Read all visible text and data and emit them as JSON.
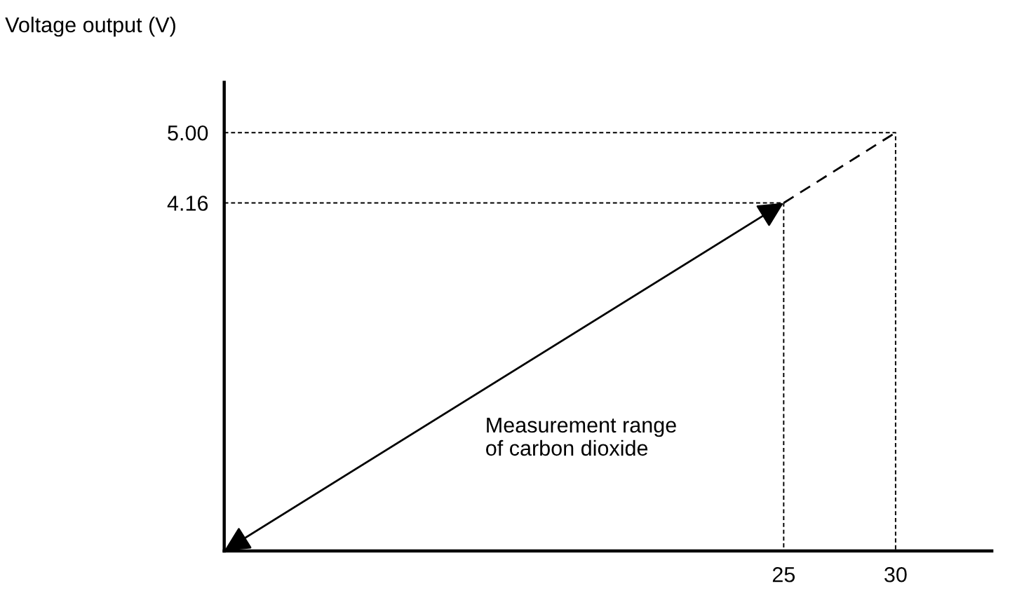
{
  "chart_data": {
    "type": "line",
    "ylabel": "Voltage output (V)",
    "xlim": [
      0,
      34.3
    ],
    "ylim": [
      0,
      5.6
    ],
    "xticks": [
      25,
      30
    ],
    "yticks": [
      {
        "value": 4.16,
        "label": "4.16"
      },
      {
        "value": 5,
        "label": "5.00"
      }
    ],
    "grid": false,
    "legend": false,
    "marker": "none",
    "series": [
      {
        "color": "#000000",
        "x": [
          0,
          25
        ],
        "values": [
          0,
          4.16
        ],
        "line_style": "solid"
      },
      {
        "color": "#000000",
        "x": [
          25,
          30
        ],
        "values": [
          4.16,
          5
        ],
        "line_style": "dashed"
      },
      {
        "color": "#000000",
        "x": [
          0,
          25,
          25
        ],
        "values": [
          4.16,
          4.16,
          0
        ],
        "line_style": "dotted"
      },
      {
        "color": "#000000",
        "x": [
          0,
          30,
          30
        ],
        "values": [
          5,
          5,
          0
        ],
        "line_style": "dotted"
      }
    ],
    "annotations": [
      "Measurement range\nof carbon dioxide"
    ]
  }
}
